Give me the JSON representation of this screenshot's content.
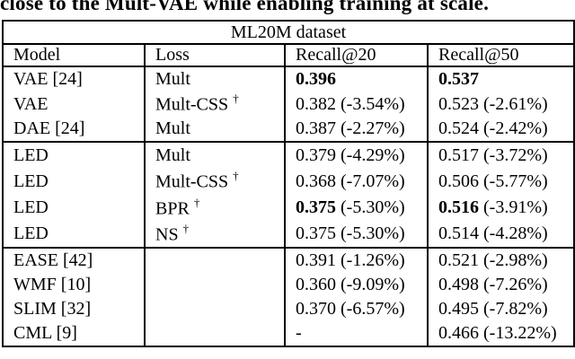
{
  "caption": {
    "text": "close to the Mult-VAE while enabling training at scale."
  },
  "table": {
    "title": "ML20M dataset",
    "columns": [
      "Model",
      "Loss",
      "Recall@20",
      "Recall@50"
    ],
    "dagger_symbol": "†",
    "groups": [
      {
        "rows": [
          {
            "model": "VAE [24]",
            "loss": "Mult",
            "dagger": false,
            "recall20": "0.396",
            "recall20_delta": "",
            "recall20_bold": true,
            "recall50": "0.537",
            "recall50_delta": "",
            "recall50_bold": true
          },
          {
            "model": "VAE",
            "loss": "Mult-CSS",
            "dagger": true,
            "recall20": "0.382",
            "recall20_delta": "(-3.54%)",
            "recall20_bold": false,
            "recall50": "0.523",
            "recall50_delta": "(-2.61%)",
            "recall50_bold": false
          },
          {
            "model": "DAE [24]",
            "loss": "Mult",
            "dagger": false,
            "recall20": "0.387",
            "recall20_delta": "(-2.27%)",
            "recall20_bold": false,
            "recall50": "0.524",
            "recall50_delta": "(-2.42%)",
            "recall50_bold": false
          }
        ]
      },
      {
        "rows": [
          {
            "model": "LED",
            "loss": "Mult",
            "dagger": false,
            "recall20": "0.379",
            "recall20_delta": "(-4.29%)",
            "recall20_bold": false,
            "recall50": "0.517",
            "recall50_delta": "(-3.72%)",
            "recall50_bold": false
          },
          {
            "model": "LED",
            "loss": "Mult-CSS",
            "dagger": true,
            "recall20": "0.368",
            "recall20_delta": "(-7.07%)",
            "recall20_bold": false,
            "recall50": "0.506",
            "recall50_delta": "(-5.77%)",
            "recall50_bold": false
          },
          {
            "model": "LED",
            "loss": "BPR",
            "dagger": true,
            "recall20": "0.375",
            "recall20_delta": "(-5.30%)",
            "recall20_bold": true,
            "recall50": "0.516",
            "recall50_delta": "(-3.91%)",
            "recall50_bold": true
          },
          {
            "model": "LED",
            "loss": "NS",
            "dagger": true,
            "recall20": "0.375",
            "recall20_delta": "(-5.30%)",
            "recall20_bold": false,
            "recall50": "0.514",
            "recall50_delta": "(-4.28%)",
            "recall50_bold": false
          }
        ]
      },
      {
        "rows": [
          {
            "model": "EASE [42]",
            "loss": "",
            "dagger": false,
            "recall20": "0.391",
            "recall20_delta": "(-1.26%)",
            "recall20_bold": false,
            "recall50": "0.521",
            "recall50_delta": "(-2.98%)",
            "recall50_bold": false
          },
          {
            "model": "WMF [10]",
            "loss": "",
            "dagger": false,
            "recall20": "0.360",
            "recall20_delta": "(-9.09%)",
            "recall20_bold": false,
            "recall50": "0.498",
            "recall50_delta": "(-7.26%)",
            "recall50_bold": false
          },
          {
            "model": "SLIM [32]",
            "loss": "",
            "dagger": false,
            "recall20": "0.370",
            "recall20_delta": "(-6.57%)",
            "recall20_bold": false,
            "recall50": "0.495",
            "recall50_delta": "(-7.82%)",
            "recall50_bold": false
          },
          {
            "model": "CML [9]",
            "loss": "",
            "dagger": false,
            "recall20": "-",
            "recall20_delta": "",
            "recall20_bold": false,
            "recall50": "0.466",
            "recall50_delta": "(-13.22%)",
            "recall50_bold": false
          }
        ]
      }
    ]
  }
}
